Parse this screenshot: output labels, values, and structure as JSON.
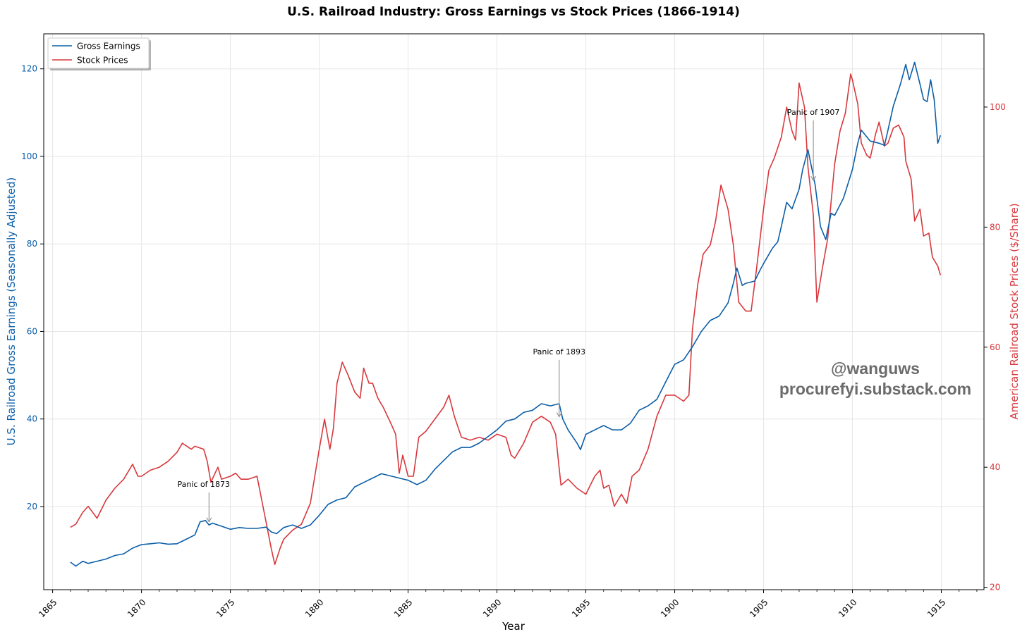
{
  "chart_data": {
    "type": "line",
    "title": "U.S. Railroad Industry: Gross Earnings vs Stock Prices (1866-1914)",
    "xlabel": "Year",
    "ylabel_left": "U.S. Railroad Gross Earnings (Seasonally Adjusted)",
    "ylabel_right": "American Railroad Stock Prices ($/Share)",
    "xlim": [
      1864.5,
      1917.4
    ],
    "ylim_left": [
      1.0,
      128.0
    ],
    "ylim_right": [
      19.6,
      112.2
    ],
    "xticks": [
      1865,
      1870,
      1875,
      1880,
      1885,
      1890,
      1895,
      1900,
      1905,
      1910,
      1915
    ],
    "yticks_left": [
      20,
      40,
      60,
      80,
      100,
      120
    ],
    "yticks_right": [
      20,
      40,
      60,
      80,
      100
    ],
    "grid": true,
    "legend_position": "top-left",
    "colors": {
      "earnings": "#0b5ea8",
      "stock": "#d8383d",
      "annotation_arrow": "#999999",
      "watermark": "#6b6b6b"
    },
    "series": [
      {
        "name": "Gross Earnings",
        "axis": "left",
        "color": "#0b5ea8",
        "points": [
          [
            1866.0,
            7.3
          ],
          [
            1866.3,
            6.4
          ],
          [
            1866.7,
            7.5
          ],
          [
            1867.0,
            7.0
          ],
          [
            1867.5,
            7.5
          ],
          [
            1868.0,
            8.0
          ],
          [
            1868.5,
            8.8
          ],
          [
            1869.0,
            9.2
          ],
          [
            1869.5,
            10.5
          ],
          [
            1870.0,
            11.3
          ],
          [
            1870.5,
            11.5
          ],
          [
            1871.0,
            11.7
          ],
          [
            1871.5,
            11.4
          ],
          [
            1872.0,
            11.5
          ],
          [
            1872.5,
            12.5
          ],
          [
            1873.0,
            13.5
          ],
          [
            1873.3,
            16.5
          ],
          [
            1873.6,
            16.8
          ],
          [
            1873.8,
            15.8
          ],
          [
            1874.0,
            16.2
          ],
          [
            1874.5,
            15.5
          ],
          [
            1875.0,
            14.8
          ],
          [
            1875.5,
            15.2
          ],
          [
            1876.0,
            15.0
          ],
          [
            1876.5,
            15.0
          ],
          [
            1877.0,
            15.3
          ],
          [
            1877.3,
            14.2
          ],
          [
            1877.6,
            13.8
          ],
          [
            1878.0,
            15.2
          ],
          [
            1878.5,
            15.8
          ],
          [
            1879.0,
            15.0
          ],
          [
            1879.5,
            15.8
          ],
          [
            1880.0,
            18.0
          ],
          [
            1880.5,
            20.5
          ],
          [
            1881.0,
            21.5
          ],
          [
            1881.5,
            22.0
          ],
          [
            1882.0,
            24.5
          ],
          [
            1882.5,
            25.5
          ],
          [
            1883.0,
            26.5
          ],
          [
            1883.5,
            27.5
          ],
          [
            1884.0,
            27.0
          ],
          [
            1884.5,
            26.5
          ],
          [
            1885.0,
            26.0
          ],
          [
            1885.5,
            25.0
          ],
          [
            1886.0,
            26.0
          ],
          [
            1886.5,
            28.5
          ],
          [
            1887.0,
            30.5
          ],
          [
            1887.5,
            32.5
          ],
          [
            1888.0,
            33.5
          ],
          [
            1888.5,
            33.5
          ],
          [
            1889.0,
            34.5
          ],
          [
            1889.5,
            36.0
          ],
          [
            1890.0,
            37.5
          ],
          [
            1890.5,
            39.5
          ],
          [
            1891.0,
            40.0
          ],
          [
            1891.5,
            41.5
          ],
          [
            1892.0,
            42.0
          ],
          [
            1892.5,
            43.5
          ],
          [
            1893.0,
            43.0
          ],
          [
            1893.5,
            43.5
          ],
          [
            1893.7,
            40.0
          ],
          [
            1894.0,
            37.5
          ],
          [
            1894.5,
            34.5
          ],
          [
            1894.7,
            33.0
          ],
          [
            1895.0,
            36.5
          ],
          [
            1895.5,
            37.5
          ],
          [
            1896.0,
            38.5
          ],
          [
            1896.5,
            37.5
          ],
          [
            1897.0,
            37.5
          ],
          [
            1897.5,
            39.0
          ],
          [
            1898.0,
            42.0
          ],
          [
            1898.5,
            43.0
          ],
          [
            1899.0,
            44.5
          ],
          [
            1899.5,
            48.5
          ],
          [
            1900.0,
            52.5
          ],
          [
            1900.5,
            53.5
          ],
          [
            1901.0,
            56.5
          ],
          [
            1901.5,
            60.0
          ],
          [
            1902.0,
            62.5
          ],
          [
            1902.5,
            63.5
          ],
          [
            1903.0,
            66.5
          ],
          [
            1903.3,
            71.0
          ],
          [
            1903.5,
            74.5
          ],
          [
            1903.8,
            70.5
          ],
          [
            1904.0,
            71.0
          ],
          [
            1904.5,
            71.5
          ],
          [
            1904.8,
            74.0
          ],
          [
            1905.0,
            75.5
          ],
          [
            1905.5,
            79.0
          ],
          [
            1905.8,
            80.5
          ],
          [
            1906.0,
            84.0
          ],
          [
            1906.3,
            89.5
          ],
          [
            1906.6,
            88.0
          ],
          [
            1907.0,
            92.5
          ],
          [
            1907.2,
            97.0
          ],
          [
            1907.5,
            101.5
          ],
          [
            1907.7,
            97.5
          ],
          [
            1907.9,
            93.5
          ],
          [
            1908.2,
            84.0
          ],
          [
            1908.5,
            81.0
          ],
          [
            1908.8,
            87.0
          ],
          [
            1909.0,
            86.5
          ],
          [
            1909.5,
            90.5
          ],
          [
            1910.0,
            97.0
          ],
          [
            1910.3,
            103.0
          ],
          [
            1910.5,
            106.0
          ],
          [
            1910.8,
            104.5
          ],
          [
            1911.0,
            103.5
          ],
          [
            1911.5,
            103.0
          ],
          [
            1911.8,
            102.5
          ],
          [
            1912.0,
            106.0
          ],
          [
            1912.3,
            111.5
          ],
          [
            1912.7,
            116.5
          ],
          [
            1913.0,
            121.0
          ],
          [
            1913.2,
            117.5
          ],
          [
            1913.5,
            121.5
          ],
          [
            1913.8,
            116.5
          ],
          [
            1914.0,
            113.0
          ],
          [
            1914.2,
            112.5
          ],
          [
            1914.4,
            117.5
          ],
          [
            1914.6,
            113.0
          ],
          [
            1914.8,
            103.0
          ],
          [
            1914.95,
            104.8
          ]
        ]
      },
      {
        "name": "Stock Prices",
        "axis": "right",
        "color": "#d8383d",
        "points": [
          [
            1866.0,
            30.0
          ],
          [
            1866.3,
            30.5
          ],
          [
            1866.7,
            32.5
          ],
          [
            1867.0,
            33.5
          ],
          [
            1867.5,
            31.5
          ],
          [
            1868.0,
            34.5
          ],
          [
            1868.5,
            36.5
          ],
          [
            1869.0,
            38.0
          ],
          [
            1869.5,
            40.5
          ],
          [
            1869.8,
            38.5
          ],
          [
            1870.0,
            38.5
          ],
          [
            1870.5,
            39.5
          ],
          [
            1871.0,
            40.0
          ],
          [
            1871.5,
            41.0
          ],
          [
            1872.0,
            42.5
          ],
          [
            1872.3,
            44.0
          ],
          [
            1872.8,
            43.0
          ],
          [
            1873.0,
            43.5
          ],
          [
            1873.5,
            43.0
          ],
          [
            1873.7,
            41.0
          ],
          [
            1873.9,
            37.5
          ],
          [
            1874.3,
            40.0
          ],
          [
            1874.5,
            38.0
          ],
          [
            1875.0,
            38.5
          ],
          [
            1875.3,
            39.0
          ],
          [
            1875.6,
            38.0
          ],
          [
            1876.0,
            38.0
          ],
          [
            1876.5,
            38.5
          ],
          [
            1877.0,
            31.0
          ],
          [
            1877.3,
            26.5
          ],
          [
            1877.5,
            23.8
          ],
          [
            1877.8,
            26.5
          ],
          [
            1878.0,
            28.0
          ],
          [
            1878.5,
            29.5
          ],
          [
            1879.0,
            30.5
          ],
          [
            1879.5,
            34.0
          ],
          [
            1880.0,
            43.0
          ],
          [
            1880.3,
            48.0
          ],
          [
            1880.6,
            43.0
          ],
          [
            1880.8,
            46.5
          ],
          [
            1881.0,
            54.0
          ],
          [
            1881.3,
            57.5
          ],
          [
            1881.6,
            55.5
          ],
          [
            1882.0,
            52.5
          ],
          [
            1882.3,
            51.5
          ],
          [
            1882.5,
            56.5
          ],
          [
            1882.8,
            54.0
          ],
          [
            1883.0,
            54.0
          ],
          [
            1883.3,
            51.5
          ],
          [
            1883.6,
            50.0
          ],
          [
            1884.0,
            47.5
          ],
          [
            1884.3,
            45.5
          ],
          [
            1884.5,
            39.0
          ],
          [
            1884.7,
            42.0
          ],
          [
            1885.0,
            38.5
          ],
          [
            1885.3,
            38.5
          ],
          [
            1885.6,
            45.0
          ],
          [
            1886.0,
            46.0
          ],
          [
            1886.5,
            48.0
          ],
          [
            1887.0,
            50.0
          ],
          [
            1887.3,
            52.0
          ],
          [
            1887.6,
            48.5
          ],
          [
            1888.0,
            45.0
          ],
          [
            1888.5,
            44.5
          ],
          [
            1889.0,
            45.0
          ],
          [
            1889.5,
            44.5
          ],
          [
            1890.0,
            45.5
          ],
          [
            1890.5,
            45.0
          ],
          [
            1890.8,
            42.0
          ],
          [
            1891.0,
            41.5
          ],
          [
            1891.5,
            44.0
          ],
          [
            1892.0,
            47.5
          ],
          [
            1892.5,
            48.5
          ],
          [
            1893.0,
            47.5
          ],
          [
            1893.3,
            45.5
          ],
          [
            1893.6,
            37.0
          ],
          [
            1894.0,
            38.0
          ],
          [
            1894.5,
            36.5
          ],
          [
            1895.0,
            35.5
          ],
          [
            1895.5,
            38.5
          ],
          [
            1895.8,
            39.5
          ],
          [
            1896.0,
            36.5
          ],
          [
            1896.3,
            37.0
          ],
          [
            1896.6,
            33.5
          ],
          [
            1897.0,
            35.5
          ],
          [
            1897.3,
            34.0
          ],
          [
            1897.6,
            38.5
          ],
          [
            1898.0,
            39.5
          ],
          [
            1898.5,
            43.0
          ],
          [
            1899.0,
            48.5
          ],
          [
            1899.5,
            52.0
          ],
          [
            1900.0,
            52.0
          ],
          [
            1900.5,
            51.0
          ],
          [
            1900.8,
            52.0
          ],
          [
            1901.0,
            63.0
          ],
          [
            1901.3,
            70.5
          ],
          [
            1901.6,
            75.5
          ],
          [
            1902.0,
            77.0
          ],
          [
            1902.3,
            81.0
          ],
          [
            1902.6,
            87.0
          ],
          [
            1903.0,
            83.0
          ],
          [
            1903.3,
            77.0
          ],
          [
            1903.6,
            67.5
          ],
          [
            1904.0,
            66.0
          ],
          [
            1904.3,
            66.0
          ],
          [
            1904.6,
            73.0
          ],
          [
            1905.0,
            83.0
          ],
          [
            1905.3,
            89.5
          ],
          [
            1905.6,
            91.5
          ],
          [
            1906.0,
            95.0
          ],
          [
            1906.3,
            100.0
          ],
          [
            1906.6,
            96.0
          ],
          [
            1906.8,
            94.5
          ],
          [
            1907.0,
            104.0
          ],
          [
            1907.3,
            100.0
          ],
          [
            1907.5,
            90.0
          ],
          [
            1907.8,
            82.0
          ],
          [
            1908.0,
            67.5
          ],
          [
            1908.3,
            73.0
          ],
          [
            1908.6,
            78.0
          ],
          [
            1909.0,
            90.5
          ],
          [
            1909.3,
            96.0
          ],
          [
            1909.6,
            99.0
          ],
          [
            1909.9,
            105.5
          ],
          [
            1910.0,
            104.5
          ],
          [
            1910.3,
            100.5
          ],
          [
            1910.5,
            94.0
          ],
          [
            1910.8,
            92.0
          ],
          [
            1911.0,
            91.5
          ],
          [
            1911.3,
            95.5
          ],
          [
            1911.5,
            97.5
          ],
          [
            1911.8,
            93.5
          ],
          [
            1912.0,
            94.0
          ],
          [
            1912.3,
            96.5
          ],
          [
            1912.6,
            97.0
          ],
          [
            1912.9,
            95.0
          ],
          [
            1913.0,
            91.0
          ],
          [
            1913.3,
            88.0
          ],
          [
            1913.5,
            81.0
          ],
          [
            1913.8,
            83.0
          ],
          [
            1914.0,
            78.5
          ],
          [
            1914.3,
            79.0
          ],
          [
            1914.5,
            75.0
          ],
          [
            1914.8,
            73.5
          ],
          [
            1914.95,
            72.0
          ]
        ]
      }
    ],
    "annotations": [
      {
        "text": "Panic of 1873",
        "x": 1873.8,
        "y": 16.5,
        "text_x": 1873.5,
        "text_y": 24.5
      },
      {
        "text": "Panic of 1893",
        "x": 1893.5,
        "y": 40.5,
        "text_x": 1893.5,
        "text_y": 54.8
      },
      {
        "text": "Panic of 1907",
        "x": 1907.8,
        "y": 94.5,
        "text_x": 1907.8,
        "text_y": 109.5
      }
    ]
  },
  "legend": {
    "items": [
      {
        "label": "Gross Earnings",
        "color": "#0b5ea8"
      },
      {
        "label": "Stock Prices",
        "color": "#d8383d"
      }
    ]
  },
  "watermark": {
    "line1": "@wanguws",
    "line2": "procurefyi.substack.com"
  }
}
